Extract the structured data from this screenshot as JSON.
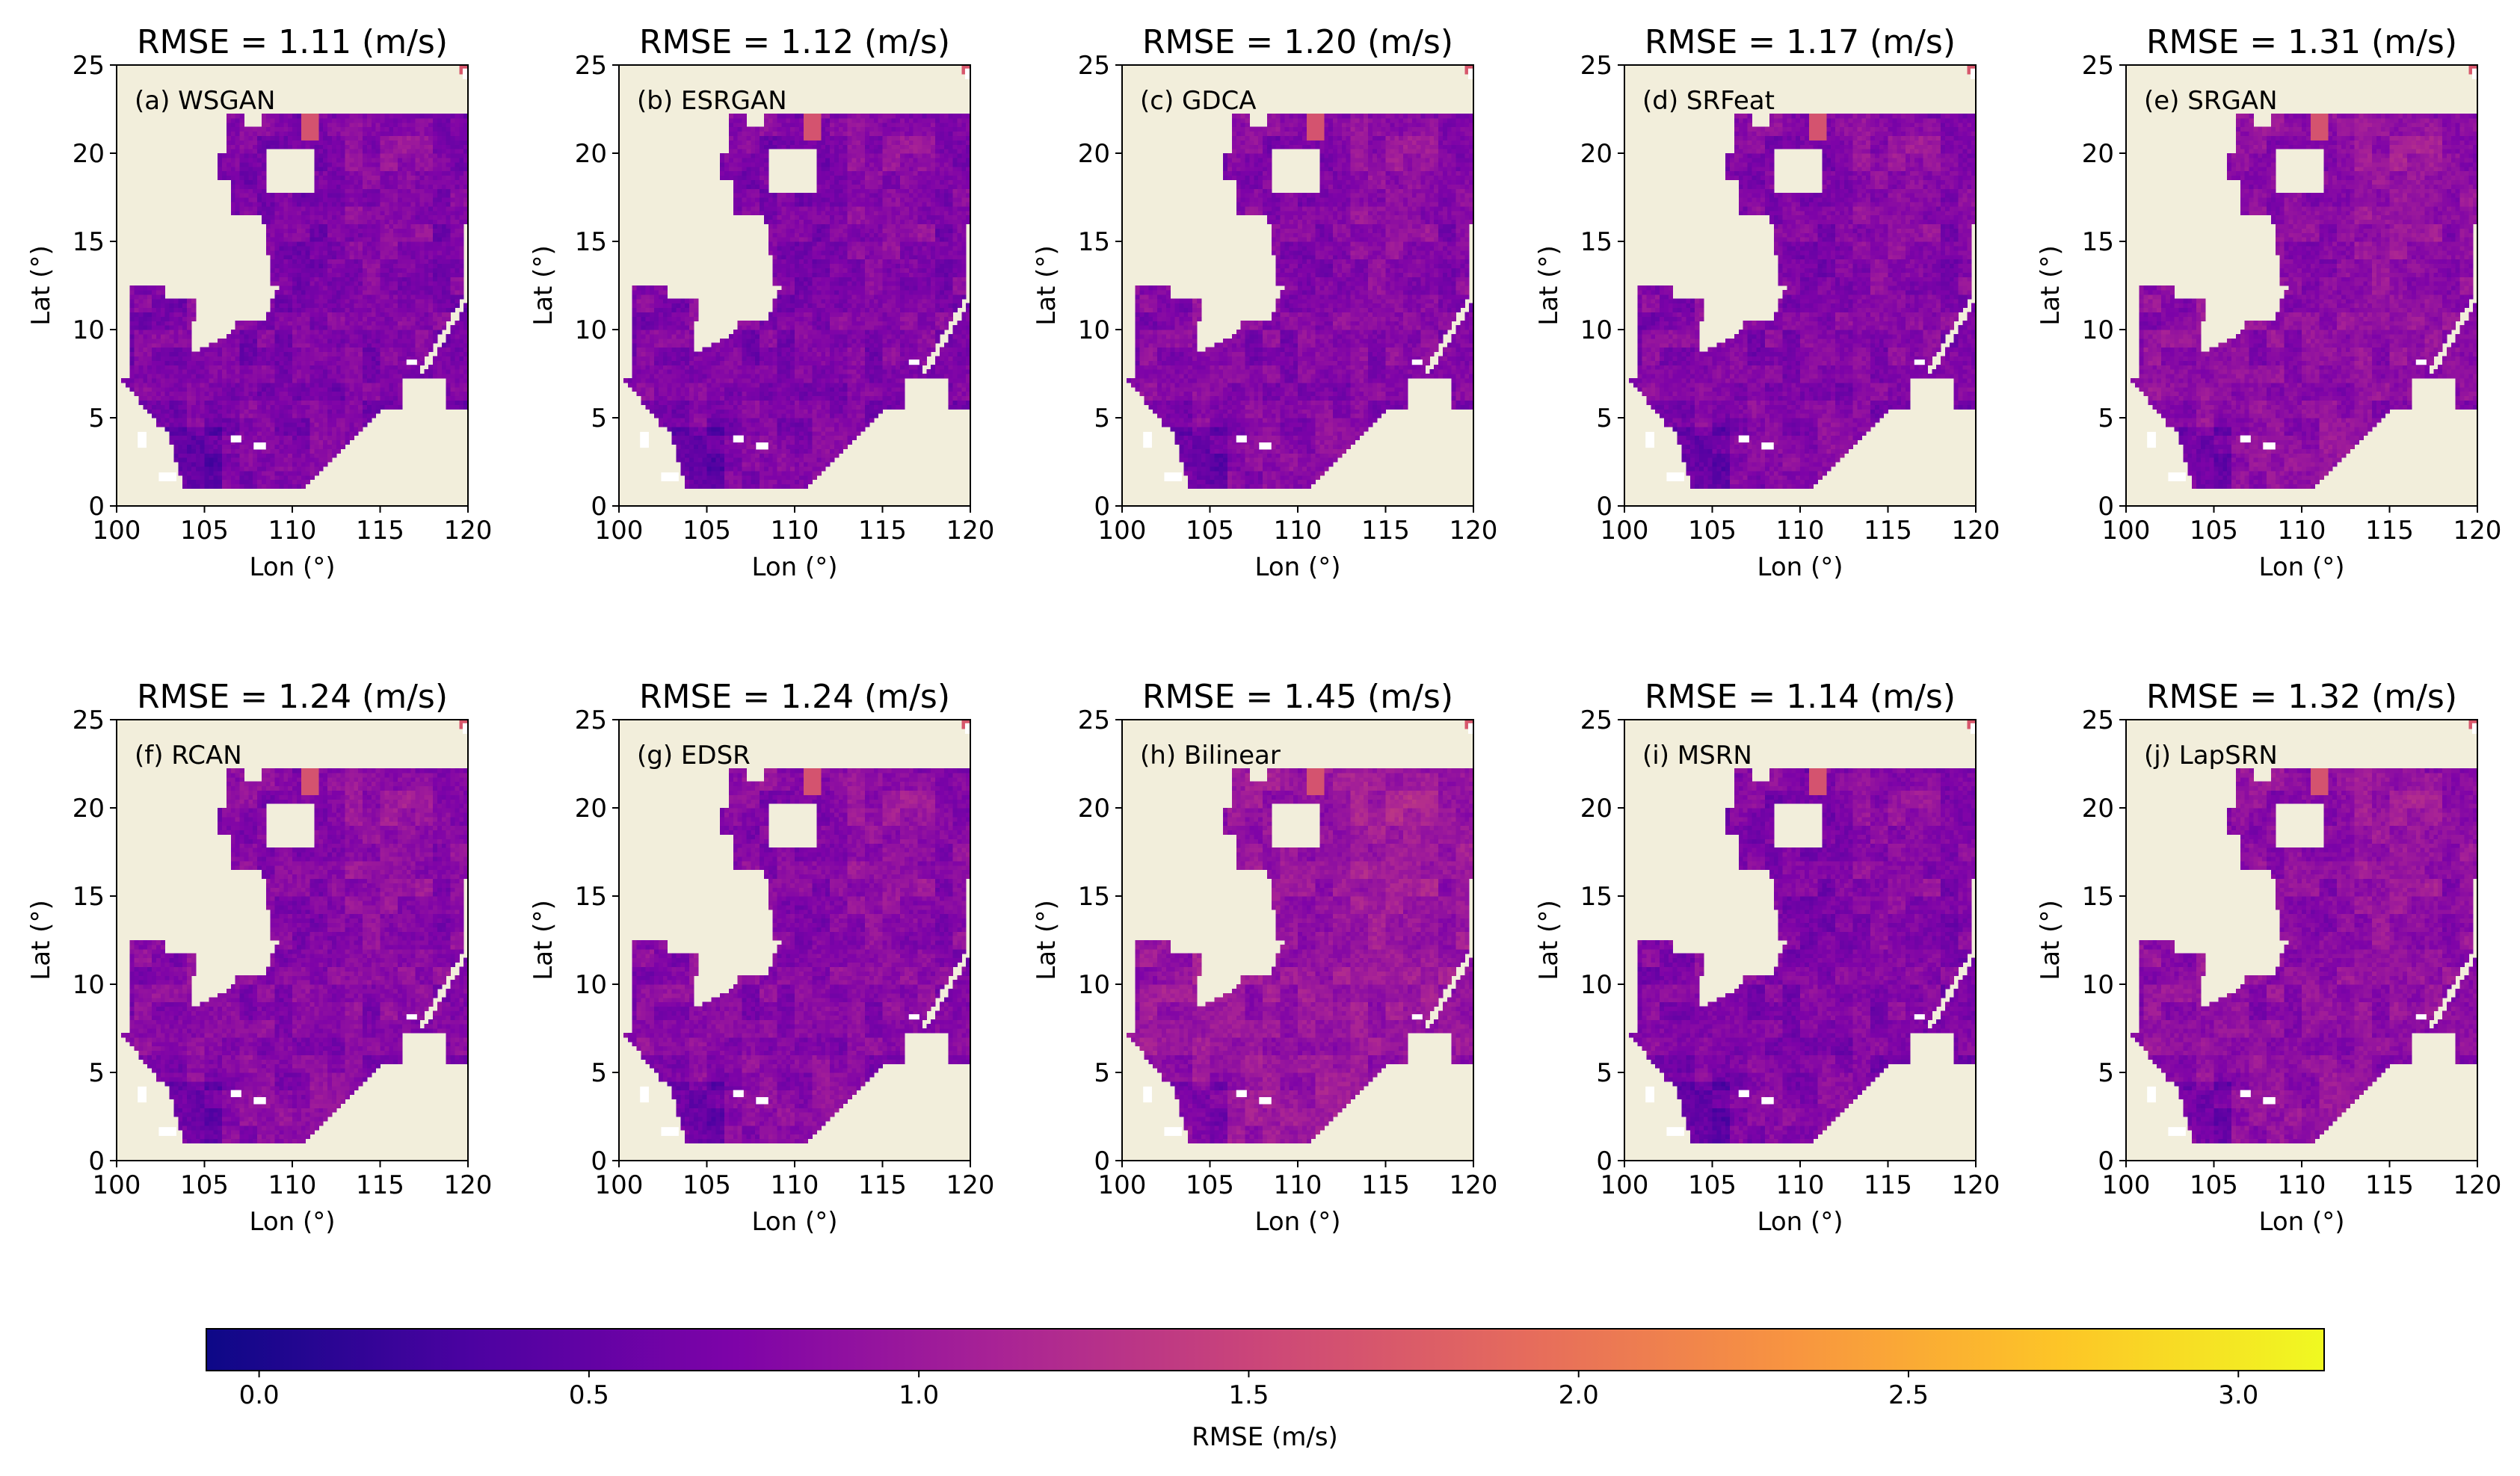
{
  "chart_data": [
    {
      "type": "heatmap",
      "title": "RMSE = 1.11 (m/s)",
      "panel_label": "(a) WSGAN",
      "mean_level": 0.72,
      "xlabel": "Lon (°)",
      "ylabel": "Lat (°)",
      "xlim": [
        100,
        120
      ],
      "ylim": [
        0,
        25
      ],
      "xticks": [
        100,
        105,
        110,
        115,
        120
      ],
      "yticks": [
        0,
        5,
        10,
        15,
        20,
        25
      ]
    },
    {
      "type": "heatmap",
      "title": "RMSE = 1.12 (m/s)",
      "panel_label": "(b) ESRGAN",
      "mean_level": 0.73,
      "xlabel": "Lon (°)",
      "ylabel": "Lat (°)",
      "xlim": [
        100,
        120
      ],
      "ylim": [
        0,
        25
      ],
      "xticks": [
        100,
        105,
        110,
        115,
        120
      ],
      "yticks": [
        0,
        5,
        10,
        15,
        20,
        25
      ]
    },
    {
      "type": "heatmap",
      "title": "RMSE = 1.20 (m/s)",
      "panel_label": "(c) GDCA",
      "mean_level": 0.78,
      "xlabel": "Lon (°)",
      "ylabel": "Lat (°)",
      "xlim": [
        100,
        120
      ],
      "ylim": [
        0,
        25
      ],
      "xticks": [
        100,
        105,
        110,
        115,
        120
      ],
      "yticks": [
        0,
        5,
        10,
        15,
        20,
        25
      ]
    },
    {
      "type": "heatmap",
      "title": "RMSE = 1.17 (m/s)",
      "panel_label": "(d) SRFeat",
      "mean_level": 0.76,
      "xlabel": "Lon (°)",
      "ylabel": "Lat (°)",
      "xlim": [
        100,
        120
      ],
      "ylim": [
        0,
        25
      ],
      "xticks": [
        100,
        105,
        110,
        115,
        120
      ],
      "yticks": [
        0,
        5,
        10,
        15,
        20,
        25
      ]
    },
    {
      "type": "heatmap",
      "title": "RMSE = 1.31 (m/s)",
      "panel_label": "(e) SRGAN",
      "mean_level": 0.85,
      "xlabel": "Lon (°)",
      "ylabel": "Lat (°)",
      "xlim": [
        100,
        120
      ],
      "ylim": [
        0,
        25
      ],
      "xticks": [
        100,
        105,
        110,
        115,
        120
      ],
      "yticks": [
        0,
        5,
        10,
        15,
        20,
        25
      ]
    },
    {
      "type": "heatmap",
      "title": "RMSE = 1.24 (m/s)",
      "panel_label": "(f) RCAN",
      "mean_level": 0.8,
      "xlabel": "Lon (°)",
      "ylabel": "Lat (°)",
      "xlim": [
        100,
        120
      ],
      "ylim": [
        0,
        25
      ],
      "xticks": [
        100,
        105,
        110,
        115,
        120
      ],
      "yticks": [
        0,
        5,
        10,
        15,
        20,
        25
      ]
    },
    {
      "type": "heatmap",
      "title": "RMSE = 1.24 (m/s)",
      "panel_label": "(g) EDSR",
      "mean_level": 0.8,
      "xlabel": "Lon (°)",
      "ylabel": "Lat (°)",
      "xlim": [
        100,
        120
      ],
      "ylim": [
        0,
        25
      ],
      "xticks": [
        100,
        105,
        110,
        115,
        120
      ],
      "yticks": [
        0,
        5,
        10,
        15,
        20,
        25
      ]
    },
    {
      "type": "heatmap",
      "title": "RMSE = 1.45 (m/s)",
      "panel_label": "(h) Bilinear",
      "mean_level": 0.95,
      "xlabel": "Lon (°)",
      "ylabel": "Lat (°)",
      "xlim": [
        100,
        120
      ],
      "ylim": [
        0,
        25
      ],
      "xticks": [
        100,
        105,
        110,
        115,
        120
      ],
      "yticks": [
        0,
        5,
        10,
        15,
        20,
        25
      ]
    },
    {
      "type": "heatmap",
      "title": "RMSE = 1.14 (m/s)",
      "panel_label": "(i) MSRN",
      "mean_level": 0.74,
      "xlabel": "Lon (°)",
      "ylabel": "Lat (°)",
      "xlim": [
        100,
        120
      ],
      "ylim": [
        0,
        25
      ],
      "xticks": [
        100,
        105,
        110,
        115,
        120
      ],
      "yticks": [
        0,
        5,
        10,
        15,
        20,
        25
      ]
    },
    {
      "type": "heatmap",
      "title": "RMSE = 1.32 (m/s)",
      "panel_label": "(j) LapSRN",
      "mean_level": 0.86,
      "xlabel": "Lon (°)",
      "ylabel": "Lat (°)",
      "xlim": [
        100,
        120
      ],
      "ylim": [
        0,
        25
      ],
      "xticks": [
        100,
        105,
        110,
        115,
        120
      ],
      "yticks": [
        0,
        5,
        10,
        15,
        20,
        25
      ]
    }
  ],
  "colorbar": {
    "label": "RMSE (m/s)",
    "colormap": "plasma",
    "range": [
      -0.08,
      3.13
    ],
    "ticks": [
      0.0,
      0.5,
      1.0,
      1.5,
      2.0,
      2.5,
      3.0
    ],
    "tick_labels": [
      "0.0",
      "0.5",
      "1.0",
      "1.5",
      "2.0",
      "2.5",
      "3.0"
    ]
  },
  "colors": {
    "land": "#f2eedb",
    "missing": "#ffffff"
  }
}
